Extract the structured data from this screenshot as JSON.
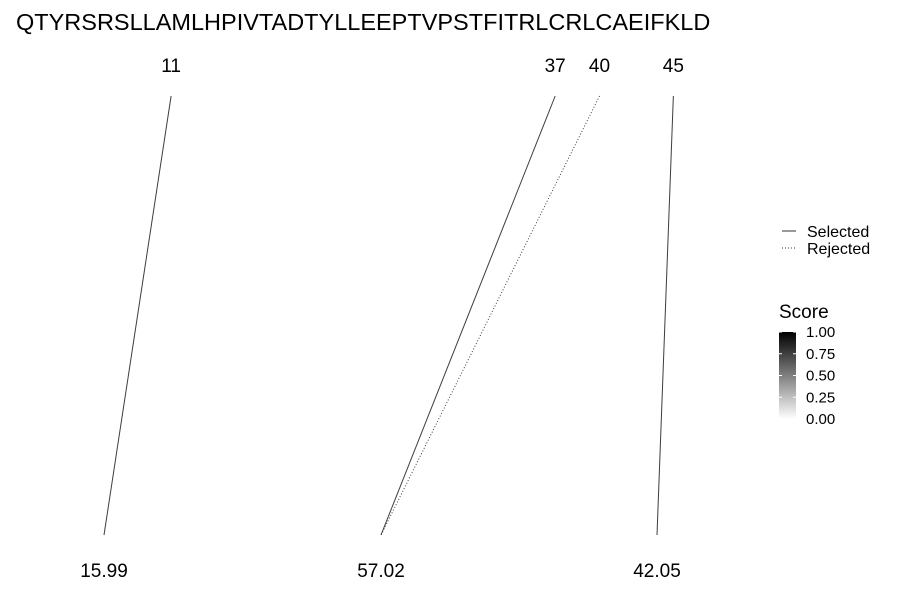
{
  "chart_data": {
    "type": "diagram",
    "sequence": "QTYRSRSLLAMLHPIVTADTYLLEEPTVPSTFITRLCRLCAEIFKLD",
    "top_positions": [
      11,
      37,
      40,
      45
    ],
    "bottom_values": [
      "15.99",
      "57.02",
      "42.05"
    ],
    "links": [
      {
        "from": 11,
        "to": "15.99",
        "status": "Selected",
        "score": 0.6
      },
      {
        "from": 37,
        "to": "57.02",
        "status": "Selected",
        "score": 0.6
      },
      {
        "from": 40,
        "to": "57.02",
        "status": "Rejected",
        "score": 0.6
      },
      {
        "from": 45,
        "to": "42.05",
        "status": "Selected",
        "score": 0.6
      }
    ],
    "legend_linetype": {
      "entries": [
        {
          "label": "Selected",
          "style": "solid"
        },
        {
          "label": "Rejected",
          "style": "dotted"
        }
      ],
      "placement": "right"
    },
    "legend_score": {
      "title": "Score",
      "ticks": [
        "1.00",
        "0.75",
        "0.50",
        "0.25",
        "0.00"
      ],
      "range": [
        0,
        1
      ],
      "colors": [
        "#ffffff",
        "#000000"
      ]
    }
  }
}
